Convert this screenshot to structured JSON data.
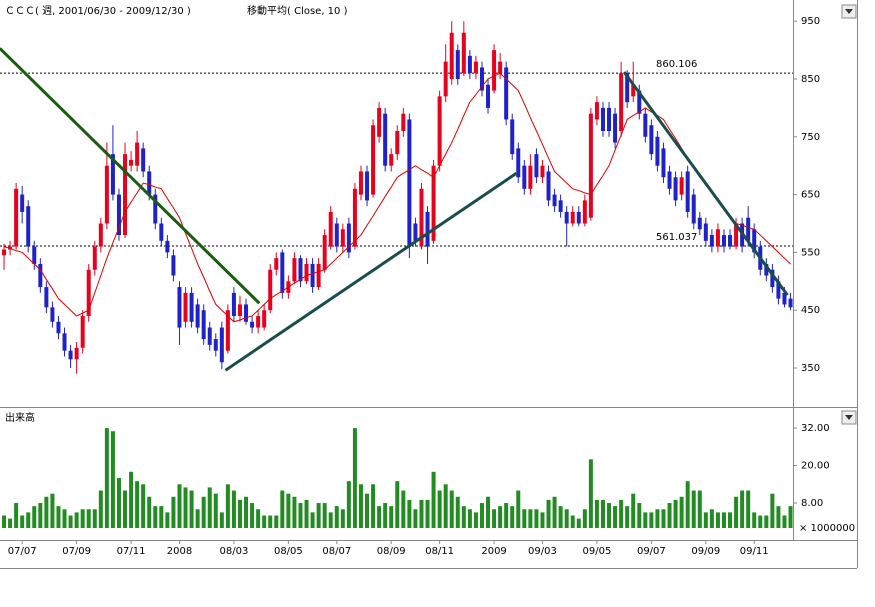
{
  "chart_data": {
    "type": "candlestick",
    "title": "ＣＣＣ( 週, 2001/06/30 - 2009/12/30 )",
    "up_color": "#e8001c",
    "down_color": "#1e22c8",
    "categories": [
      null,
      null,
      null,
      "07/07",
      null,
      null,
      null,
      null,
      null,
      null,
      null,
      null,
      "07/09",
      null,
      null,
      null,
      null,
      null,
      null,
      null,
      null,
      "07/11",
      null,
      null,
      null,
      null,
      null,
      null,
      null,
      "2008",
      null,
      null,
      null,
      null,
      null,
      null,
      null,
      null,
      "08/03",
      null,
      null,
      null,
      null,
      null,
      null,
      null,
      null,
      "08/05",
      null,
      null,
      null,
      null,
      null,
      null,
      null,
      "08/07",
      null,
      null,
      null,
      null,
      null,
      null,
      null,
      null,
      "08/09",
      null,
      null,
      null,
      null,
      null,
      null,
      null,
      "08/11",
      null,
      null,
      null,
      null,
      null,
      null,
      null,
      null,
      "2009",
      null,
      null,
      null,
      null,
      null,
      null,
      null,
      "09/03",
      null,
      null,
      null,
      null,
      null,
      null,
      null,
      null,
      "09/05",
      null,
      null,
      null,
      null,
      null,
      null,
      null,
      null,
      "09/07",
      null,
      null,
      null,
      null,
      null,
      null,
      null,
      null,
      "09/09",
      null,
      null,
      null,
      null,
      null,
      null,
      null,
      "09/11",
      null,
      null,
      null,
      null,
      null,
      null
    ],
    "open": [
      545,
      555,
      560,
      650,
      630,
      560,
      530,
      490,
      455,
      430,
      410,
      380,
      365,
      385,
      440,
      520,
      560,
      600,
      720,
      650,
      580,
      700,
      700,
      730,
      690,
      650,
      600,
      570,
      545,
      490,
      430,
      480,
      460,
      450,
      420,
      400,
      420,
      380,
      480,
      440,
      460,
      430,
      420,
      420,
      450,
      520,
      550,
      480,
      500,
      540,
      500,
      530,
      490,
      520,
      560,
      600,
      560,
      600,
      560,
      650,
      690,
      650,
      750,
      790,
      700,
      720,
      760,
      780,
      600,
      560,
      620,
      570,
      700,
      820,
      850,
      900,
      860,
      890,
      860,
      870,
      840,
      830,
      860,
      870,
      780,
      730,
      700,
      660,
      720,
      680,
      690,
      650,
      640,
      620,
      600,
      620,
      600,
      610,
      780,
      800,
      800,
      790,
      760,
      860,
      820,
      830,
      790,
      770,
      750,
      730,
      690,
      680,
      650,
      690,
      650,
      610,
      600,
      580,
      560,
      580,
      580,
      560,
      600,
      610,
      590,
      560,
      530,
      520,
      500,
      480,
      470
    ],
    "high": [
      565,
      570,
      670,
      665,
      640,
      570,
      540,
      500,
      465,
      440,
      420,
      390,
      395,
      450,
      530,
      570,
      610,
      740,
      770,
      660,
      740,
      725,
      760,
      740,
      700,
      660,
      610,
      580,
      555,
      500,
      490,
      490,
      470,
      460,
      430,
      410,
      430,
      460,
      490,
      475,
      470,
      440,
      450,
      460,
      530,
      550,
      555,
      510,
      550,
      545,
      540,
      540,
      540,
      590,
      630,
      610,
      600,
      610,
      670,
      700,
      700,
      780,
      810,
      800,
      730,
      770,
      800,
      790,
      610,
      670,
      630,
      710,
      830,
      910,
      950,
      910,
      950,
      900,
      890,
      880,
      850,
      910,
      895,
      880,
      790,
      740,
      710,
      720,
      730,
      710,
      700,
      660,
      650,
      630,
      630,
      630,
      650,
      800,
      820,
      810,
      810,
      800,
      880,
      865,
      880,
      840,
      800,
      780,
      760,
      740,
      700,
      690,
      690,
      700,
      660,
      620,
      610,
      590,
      600,
      590,
      590,
      610,
      610,
      630,
      600,
      570,
      540,
      530,
      510,
      490,
      480
    ],
    "low": [
      520,
      545,
      555,
      600,
      550,
      520,
      480,
      445,
      420,
      400,
      370,
      350,
      340,
      375,
      430,
      510,
      550,
      590,
      640,
      570,
      575,
      690,
      690,
      680,
      640,
      590,
      560,
      540,
      500,
      390,
      420,
      420,
      410,
      390,
      380,
      370,
      348,
      375,
      430,
      430,
      425,
      410,
      410,
      415,
      445,
      510,
      470,
      470,
      495,
      490,
      495,
      480,
      485,
      515,
      555,
      550,
      550,
      540,
      555,
      640,
      630,
      645,
      740,
      690,
      690,
      710,
      750,
      540,
      560,
      555,
      530,
      565,
      690,
      810,
      840,
      840,
      855,
      850,
      850,
      820,
      790,
      825,
      850,
      770,
      710,
      670,
      650,
      650,
      670,
      670,
      630,
      620,
      610,
      560,
      595,
      595,
      595,
      605,
      770,
      750,
      750,
      730,
      750,
      800,
      810,
      780,
      740,
      710,
      690,
      670,
      650,
      630,
      640,
      610,
      590,
      580,
      560,
      550,
      550,
      550,
      555,
      555,
      550,
      560,
      540,
      510,
      500,
      480,
      460,
      455,
      450
    ],
    "close": [
      555,
      560,
      660,
      620,
      560,
      530,
      490,
      455,
      430,
      410,
      380,
      365,
      385,
      440,
      520,
      560,
      600,
      700,
      650,
      580,
      720,
      710,
      740,
      690,
      650,
      600,
      570,
      550,
      510,
      420,
      480,
      430,
      420,
      400,
      390,
      380,
      360,
      450,
      440,
      460,
      430,
      420,
      440,
      450,
      520,
      540,
      480,
      500,
      540,
      500,
      530,
      490,
      530,
      580,
      620,
      560,
      590,
      550,
      660,
      690,
      640,
      770,
      800,
      700,
      720,
      760,
      790,
      560,
      570,
      660,
      560,
      700,
      820,
      880,
      930,
      850,
      930,
      860,
      880,
      830,
      800,
      900,
      880,
      780,
      720,
      680,
      660,
      700,
      680,
      700,
      640,
      630,
      620,
      600,
      620,
      600,
      640,
      790,
      810,
      760,
      760,
      740,
      860,
      810,
      840,
      790,
      750,
      720,
      700,
      680,
      660,
      640,
      680,
      620,
      600,
      590,
      570,
      560,
      590,
      560,
      560,
      600,
      560,
      570,
      550,
      520,
      510,
      490,
      470,
      460,
      455
    ],
    "moving_average": {
      "name": "移動平均( Close, 10 )",
      "color": "#e00000",
      "values": [
        560,
        557,
        553,
        550,
        540,
        530,
        520,
        503,
        487,
        470,
        460,
        450,
        440,
        445,
        450,
        480,
        510,
        540,
        567,
        593,
        620,
        637,
        653,
        670,
        667,
        663,
        660,
        643,
        627,
        610,
        583,
        557,
        530,
        507,
        483,
        460,
        450,
        440,
        430,
        433,
        437,
        440,
        450,
        460,
        470,
        477,
        483,
        490,
        497,
        503,
        510,
        513,
        517,
        520,
        530,
        540,
        550,
        560,
        570,
        580,
        597,
        613,
        630,
        647,
        663,
        680,
        687,
        693,
        700,
        693,
        687,
        680,
        700,
        720,
        740,
        763,
        787,
        810,
        823,
        837,
        850,
        855,
        860,
        850,
        840,
        830,
        807,
        783,
        760,
        737,
        713,
        690,
        680,
        670,
        660,
        657,
        653,
        650,
        667,
        683,
        700,
        727,
        753,
        780,
        787,
        793,
        800,
        793,
        787,
        780,
        763,
        747,
        730,
        713,
        697,
        680,
        667,
        653,
        640,
        627,
        613,
        600,
        597,
        593,
        590,
        580,
        570,
        560,
        550,
        540,
        530
      ]
    },
    "ylim": [
      286,
      978
    ],
    "yticks": [
      950,
      850,
      750,
      650,
      550,
      450,
      350
    ],
    "hlines": [
      {
        "value": 860.106
      },
      {
        "value": 561.037
      }
    ],
    "trendlines": [
      {
        "x": [
          -0.7,
          42.2
        ],
        "y": [
          903,
          462
        ],
        "color": "#1a5c10"
      },
      {
        "x": [
          36.6,
          84.7
        ],
        "y": [
          346,
          687
        ],
        "color": "#1c4d4d"
      },
      {
        "x": [
          102.5,
          129.5
        ],
        "y": [
          862,
          476
        ],
        "color": "#1c4d4d"
      }
    ],
    "volume": {
      "label": "出来高",
      "color": "#228b22",
      "multiplier": "× 1000000",
      "ylim": [
        0,
        37.8
      ],
      "yticks": [
        {
          "value": 32,
          "label": "32.00"
        },
        {
          "value": 20,
          "label": "20.00"
        },
        {
          "value": 8,
          "label": "8.00"
        }
      ],
      "values": [
        4,
        3,
        8,
        4,
        5,
        7,
        8,
        10,
        11,
        7,
        6,
        4,
        5,
        6,
        6,
        6,
        12,
        32,
        31,
        16,
        12,
        18,
        15,
        14,
        10,
        7,
        7,
        5,
        10,
        14,
        13,
        12,
        6,
        10,
        13,
        11,
        5,
        14,
        12,
        9,
        10,
        8,
        6,
        4,
        4,
        4,
        12,
        11,
        10,
        8,
        9,
        5,
        8,
        8,
        5,
        7,
        6,
        15,
        32,
        14,
        11,
        14,
        7,
        8,
        7,
        15,
        12,
        9,
        6,
        9,
        9,
        18,
        12,
        14,
        12,
        10,
        7,
        6,
        5,
        8,
        10,
        6,
        7,
        8,
        7,
        12,
        6,
        6,
        6,
        5,
        9,
        10,
        7,
        6,
        4,
        3,
        6,
        22,
        9,
        9,
        8,
        7,
        9,
        7,
        11,
        8,
        5,
        5,
        6,
        6,
        8,
        9,
        10,
        15,
        12,
        12,
        5,
        6,
        5,
        5,
        5,
        10,
        12,
        12,
        5,
        4,
        4,
        11,
        7,
        4,
        7
      ]
    }
  }
}
